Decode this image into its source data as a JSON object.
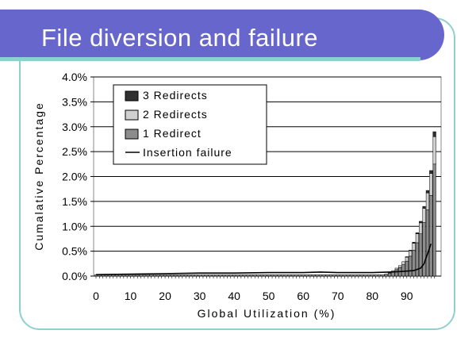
{
  "slide": {
    "title": "File diversion and failure"
  },
  "chart_data": {
    "type": "bar",
    "title": "",
    "xlabel": "Global Utilization (%)",
    "ylabel": "Cumalative Percentage",
    "xlim": [
      0,
      99
    ],
    "ylim": [
      0,
      4.0
    ],
    "x_ticks": [
      "0",
      "10",
      "20",
      "30",
      "40",
      "50",
      "60",
      "70",
      "80",
      "90"
    ],
    "y_ticks": [
      "0.0%",
      "0.5%",
      "1.0%",
      "1.5%",
      "2.0%",
      "2.5%",
      "3.0%",
      "3.5%",
      "4.0%"
    ],
    "grid": "horizontal",
    "legend_position": "top-left",
    "stacked": true,
    "x": [
      84,
      85,
      86,
      87,
      88,
      89,
      90,
      91,
      92,
      93,
      94,
      95,
      96,
      97,
      98
    ],
    "series": [
      {
        "name": "1 Redirect",
        "color": "#8c8c8c",
        "values": [
          0.04,
          0.06,
          0.09,
          0.13,
          0.17,
          0.23,
          0.3,
          0.4,
          0.52,
          0.67,
          0.85,
          1.08,
          1.33,
          1.62,
          2.25
        ]
      },
      {
        "name": "2 Redirects",
        "color": "#d0d0d0",
        "values": [
          0.0,
          0.01,
          0.02,
          0.03,
          0.04,
          0.06,
          0.08,
          0.11,
          0.14,
          0.18,
          0.22,
          0.28,
          0.34,
          0.44,
          0.55
        ]
      },
      {
        "name": "3 Redirects",
        "color": "#303030",
        "values": [
          0.0,
          0.0,
          0.0,
          0.0,
          0.0,
          0.0,
          0.01,
          0.01,
          0.02,
          0.02,
          0.03,
          0.04,
          0.05,
          0.06,
          0.1
        ]
      }
    ],
    "baseline_bars": {
      "x_start": 0,
      "x_end": 83,
      "value": 0.03,
      "color": "#8c8c8c"
    },
    "line_series": {
      "name": "Insertion failure",
      "color": "#000000",
      "x": [
        0,
        10,
        20,
        30,
        40,
        50,
        60,
        65,
        70,
        80,
        85,
        88,
        90,
        92,
        94,
        95,
        96,
        97
      ],
      "y": [
        0.03,
        0.04,
        0.05,
        0.06,
        0.06,
        0.07,
        0.07,
        0.08,
        0.07,
        0.07,
        0.08,
        0.09,
        0.1,
        0.11,
        0.16,
        0.25,
        0.45,
        0.65
      ]
    },
    "legend": [
      "3 Redirects",
      "2 Redirects",
      "1 Redirect",
      "Insertion failure"
    ]
  }
}
